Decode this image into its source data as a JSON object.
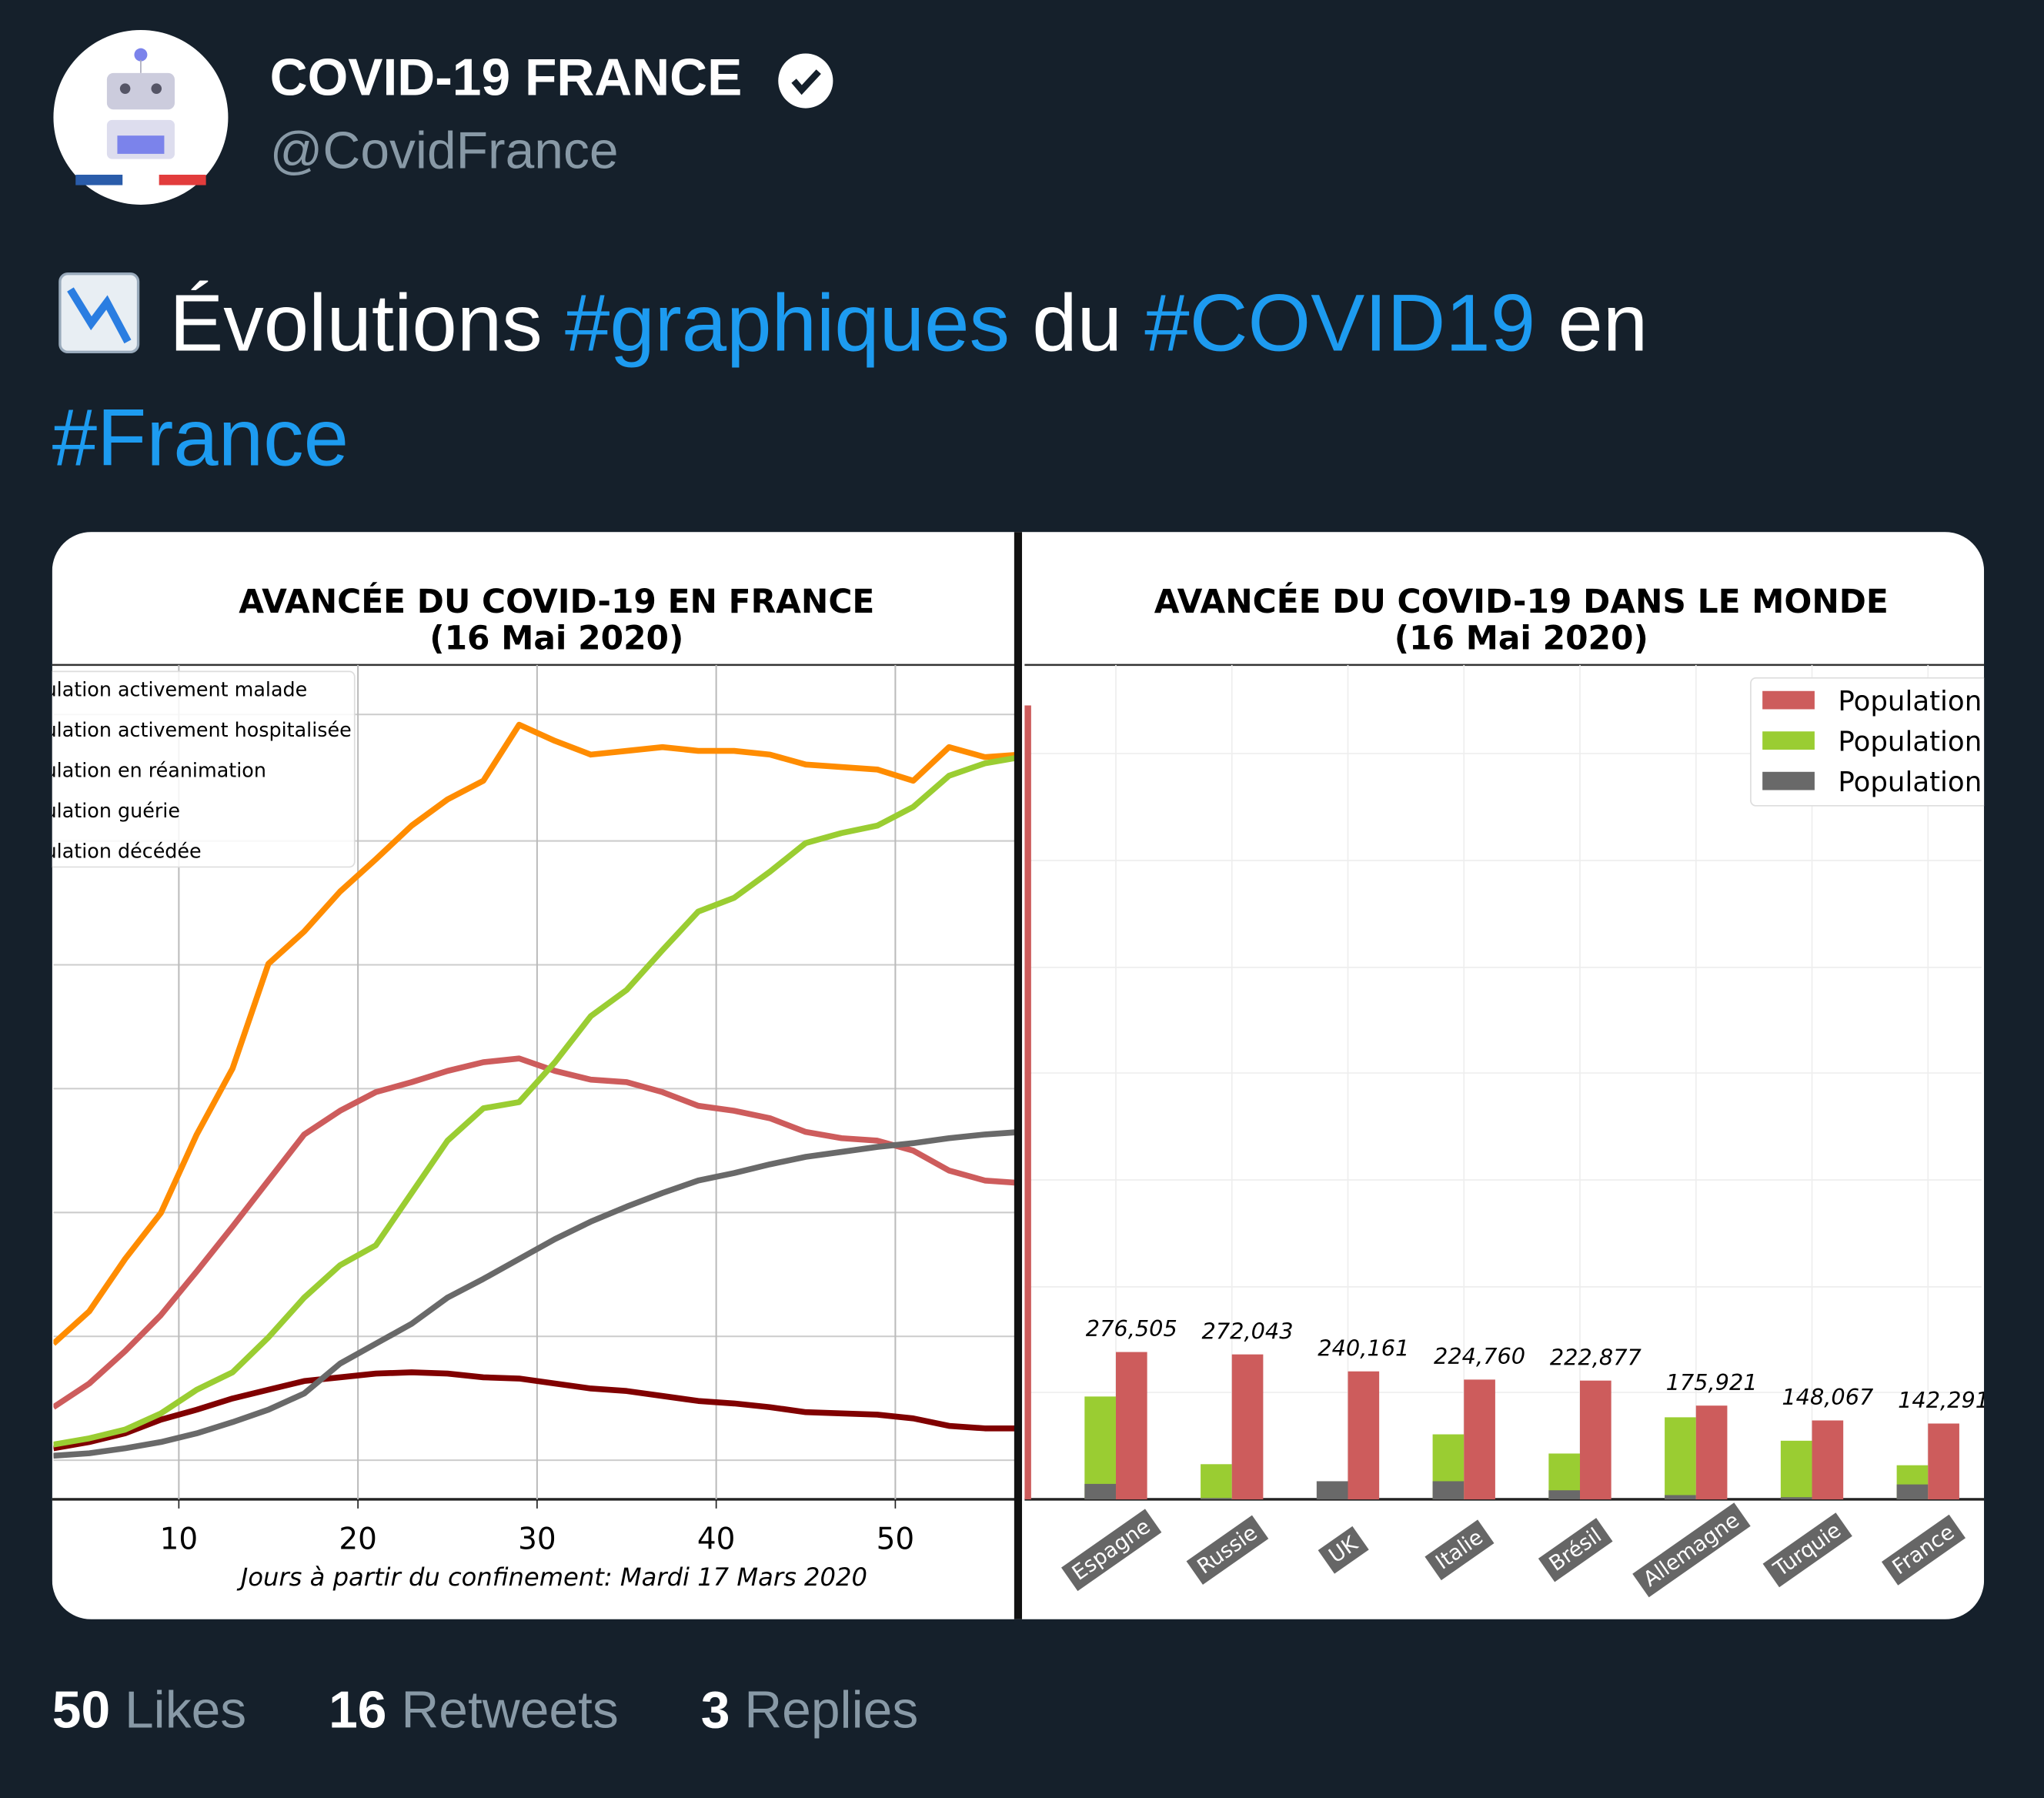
{
  "author": {
    "name": "COVID-19 FRANCE",
    "handle": "@CovidFrance"
  },
  "tweet": {
    "text": [
      "Évolutions",
      "#graphiques",
      "du",
      "#COVID19",
      "en",
      "#France"
    ]
  },
  "charts": [
    {
      "type": "line",
      "title": "AVANCÉE DU COVID-19 EN FRANCE",
      "subtitle": "(16 Mai 2020)",
      "xlabel": "Jours à partir du confinement: Mardi 17 Mars 2020",
      "x": [
        3,
        5,
        7,
        9,
        11,
        13,
        15,
        17,
        19,
        21,
        23,
        25,
        27,
        29,
        31,
        33,
        35,
        37,
        39,
        41,
        43,
        45,
        47,
        49,
        51,
        53,
        55,
        57
      ],
      "xlim": [
        3,
        57
      ],
      "xticks": [
        10,
        20,
        30,
        40,
        50
      ],
      "ylim": [
        -0.3,
        6.4
      ],
      "series": [
        {
          "name": "ulation activement malade",
          "color": "#ff8c00",
          "values": [
            0.95,
            1.21,
            1.63,
            2.0,
            2.63,
            3.16,
            4.0,
            4.26,
            4.58,
            4.84,
            5.11,
            5.32,
            5.47,
            5.92,
            5.79,
            5.68,
            5.71,
            5.74,
            5.71,
            5.71,
            5.68,
            5.6,
            5.58,
            5.56,
            5.47,
            5.74,
            5.66,
            5.68
          ]
        },
        {
          "name": "ulation activement hospitalisée",
          "color": "#cd5c5c",
          "values": [
            0.44,
            0.63,
            0.89,
            1.18,
            1.53,
            1.89,
            2.26,
            2.63,
            2.82,
            2.97,
            3.05,
            3.14,
            3.21,
            3.24,
            3.14,
            3.07,
            3.05,
            2.97,
            2.86,
            2.82,
            2.76,
            2.65,
            2.6,
            2.58,
            2.5,
            2.34,
            2.26,
            2.24
          ]
        },
        {
          "name": "ulation en réanimation",
          "color": "#800000",
          "values": [
            0.11,
            0.16,
            0.23,
            0.34,
            0.42,
            0.51,
            0.58,
            0.65,
            0.68,
            0.71,
            0.72,
            0.71,
            0.68,
            0.67,
            0.63,
            0.59,
            0.57,
            0.53,
            0.49,
            0.47,
            0.44,
            0.4,
            0.39,
            0.38,
            0.35,
            0.29,
            0.27,
            0.27
          ]
        },
        {
          "name": "ulation guérie",
          "color": "#9acd32",
          "values": [
            0.14,
            0.19,
            0.26,
            0.39,
            0.58,
            0.72,
            1.0,
            1.32,
            1.58,
            1.74,
            2.16,
            2.58,
            2.84,
            2.89,
            3.21,
            3.58,
            3.79,
            4.11,
            4.42,
            4.53,
            4.74,
            4.97,
            5.05,
            5.11,
            5.26,
            5.51,
            5.61,
            5.66
          ]
        },
        {
          "name": "ulation décédée",
          "color": "#696969",
          "values": [
            0.05,
            0.07,
            0.11,
            0.16,
            0.23,
            0.32,
            0.42,
            0.55,
            0.79,
            0.95,
            1.11,
            1.32,
            1.47,
            1.63,
            1.79,
            1.93,
            2.05,
            2.16,
            2.26,
            2.32,
            2.39,
            2.45,
            2.49,
            2.53,
            2.56,
            2.6,
            2.63,
            2.65
          ]
        }
      ]
    },
    {
      "type": "bar",
      "title": "AVANCÉE DU COVID-19 DANS LE MONDE",
      "subtitle": "(16 Mai 2020)",
      "categories": [
        null,
        "Espagne",
        "Russie",
        "UK",
        "Italie",
        "Brésil",
        "Allemagne",
        "Turquie",
        "France"
      ],
      "ylim": [
        0,
        1566000
      ],
      "series": [
        {
          "name": "Population",
          "color": "#cd5c5c",
          "values": [
            1490000,
            276505,
            272043,
            240161,
            224760,
            222877,
            175921,
            148067,
            142291
          ],
          "value_labels": [
            null,
            "276,505",
            "272,043",
            "240,161",
            "224,760",
            "222,877",
            "175,921",
            "148,067",
            "142,291"
          ]
        },
        {
          "name": "Population",
          "color": "#9acd32",
          "values": [
            null,
            193000,
            66000,
            null,
            122000,
            86000,
            154000,
            110000,
            64000
          ]
        },
        {
          "name": "Population",
          "color": "#696969",
          "values": [
            null,
            29000,
            2500,
            34000,
            34000,
            17000,
            8000,
            4000,
            28000
          ]
        }
      ]
    }
  ],
  "stats": [
    {
      "count": 50,
      "label": "Likes"
    },
    {
      "count": 16,
      "label": "Retweets"
    },
    {
      "count": 3,
      "label": "Replies"
    }
  ]
}
